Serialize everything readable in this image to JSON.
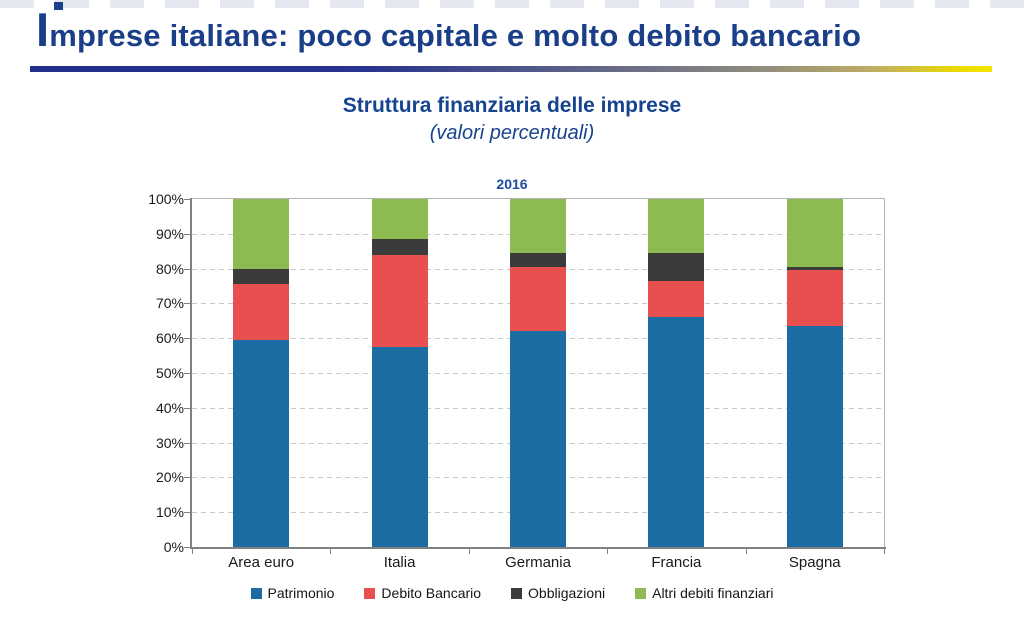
{
  "page": {
    "title": "Imprese italiane: poco capitale e molto debito bancario"
  },
  "chart": {
    "title": "Struttura finanziaria delle imprese",
    "subtitle": "(valori percentuali)",
    "year_label": "2016"
  },
  "chart_data": {
    "type": "bar",
    "stacked": true,
    "title": "Struttura finanziaria delle imprese",
    "subtitle": "(valori percentuali)",
    "year": "2016",
    "categories": [
      "Area euro",
      "Italia",
      "Germania",
      "Francia",
      "Spagna"
    ],
    "series": [
      {
        "name": "Patrimonio",
        "color": "#1b6ca3",
        "values": [
          59.5,
          57.5,
          62,
          66,
          63.5
        ]
      },
      {
        "name": "Debito Bancario",
        "color": "#e8504f",
        "values": [
          16,
          26.5,
          18.5,
          10.5,
          16
        ]
      },
      {
        "name": "Obbligazioni",
        "color": "#3b3b3b",
        "values": [
          4.5,
          4.5,
          4,
          8,
          1
        ]
      },
      {
        "name": "Altri debiti finanziari",
        "color": "#8dbb51",
        "values": [
          20,
          11.5,
          15.5,
          15.5,
          19.5
        ]
      }
    ],
    "ylim": [
      0,
      100
    ],
    "y_tick_labels": [
      "100%",
      "90%",
      "80%",
      "70%",
      "60%",
      "50%",
      "40%",
      "30%",
      "20%",
      "10%",
      "0%"
    ],
    "grid": "dashed-horizontal",
    "legend_position": "bottom"
  },
  "colors": {
    "title_text": "#1a3e87",
    "chart_heading_text": "#17448f",
    "axis_line": "#808080",
    "gridline": "#c9c9c9",
    "rule_gradient_left": "#232e8b",
    "rule_gradient_mid": "#8d8a80",
    "rule_gradient_right": "#f4e600"
  }
}
